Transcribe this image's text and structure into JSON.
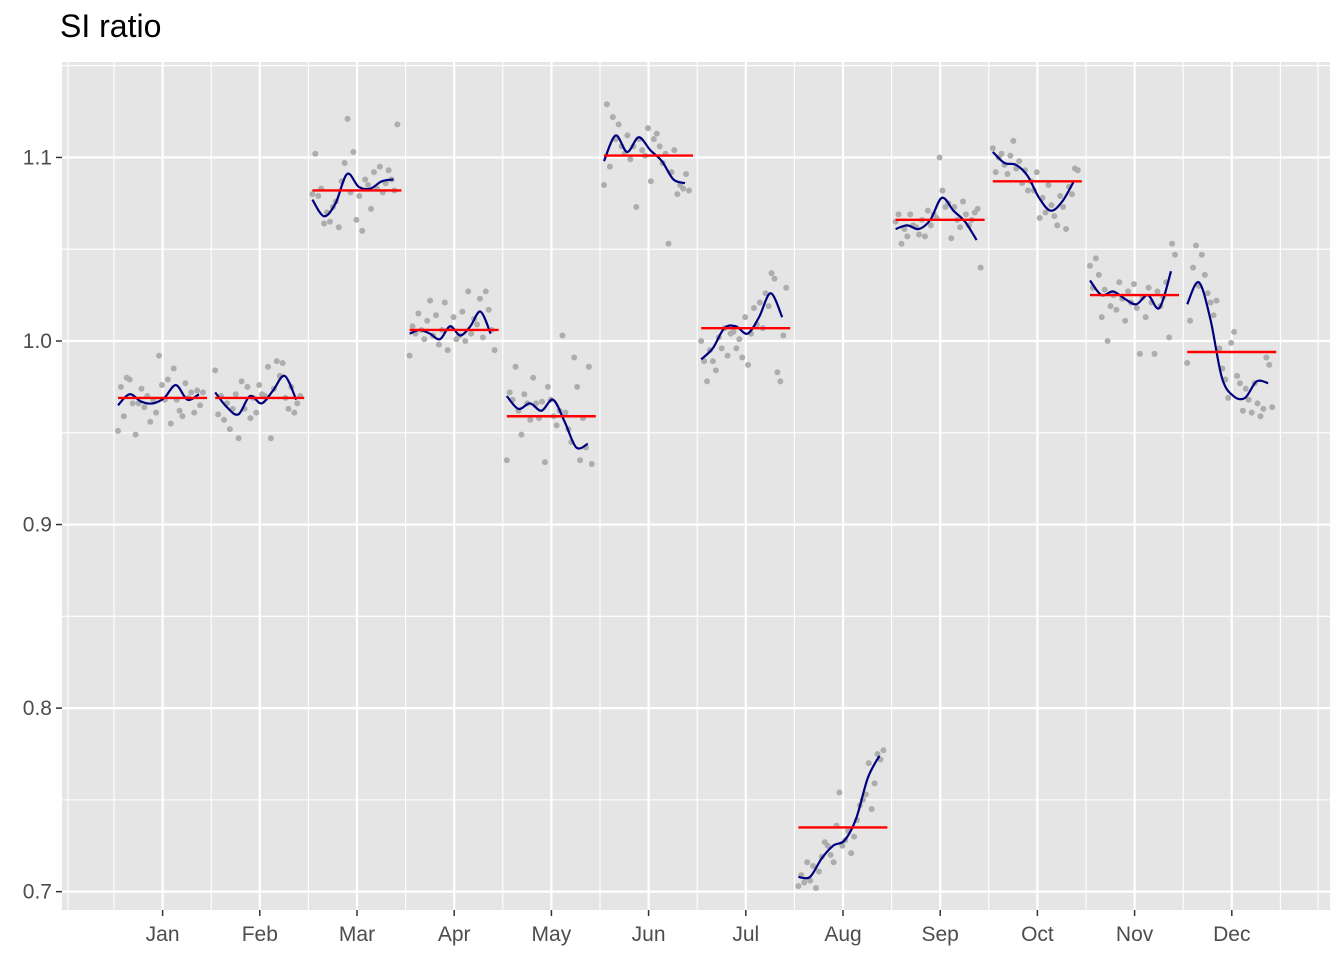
{
  "chart_data": {
    "type": "scatter",
    "title": "SI ratio",
    "xlabel": "",
    "ylabel": "",
    "ylim": [
      0.69,
      1.152
    ],
    "y_ticks": [
      "0.7",
      "0.8",
      "0.9",
      "1.0",
      "1.1"
    ],
    "grid": true,
    "legend": "none",
    "colors": {
      "panel_background": "#e5e5e5",
      "grid": "#ffffff",
      "points": "#adadad",
      "mean_line": "#ff0000",
      "smooth_line": "#00007f"
    },
    "categories": [
      "Jan",
      "Feb",
      "Mar",
      "Apr",
      "May",
      "Jun",
      "Jul",
      "Aug",
      "Sep",
      "Oct",
      "Nov",
      "Dec"
    ],
    "month_means": [
      0.969,
      0.969,
      1.082,
      1.006,
      0.959,
      1.101,
      1.007,
      0.735,
      1.066,
      1.087,
      1.025,
      0.994
    ],
    "smooth_series": [
      [
        0.965,
        0.971,
        0.967,
        0.966,
        0.969,
        0.976,
        0.968,
        0.971
      ],
      [
        0.972,
        0.964,
        0.96,
        0.97,
        0.966,
        0.973,
        0.981,
        0.968
      ],
      [
        1.077,
        1.068,
        1.075,
        1.091,
        1.084,
        1.083,
        1.087,
        1.088
      ],
      [
        1.004,
        1.006,
        1.004,
        1.001,
        1.008,
        1.003,
        1.008,
        1.016,
        1.004
      ],
      [
        0.97,
        0.963,
        0.966,
        0.962,
        0.968,
        0.956,
        0.942,
        0.944
      ],
      [
        1.098,
        1.112,
        1.103,
        1.111,
        1.104,
        1.098,
        1.088,
        1.086
      ],
      [
        0.99,
        0.996,
        1.007,
        1.008,
        1.004,
        1.013,
        1.026,
        1.013
      ],
      [
        0.708,
        0.708,
        0.718,
        0.725,
        0.728,
        0.74,
        0.762,
        0.774
      ],
      [
        1.061,
        1.063,
        1.061,
        1.066,
        1.078,
        1.071,
        1.065,
        1.055
      ],
      [
        1.103,
        1.097,
        1.096,
        1.09,
        1.078,
        1.071,
        1.076,
        1.087
      ],
      [
        1.033,
        1.025,
        1.027,
        1.023,
        1.02,
        1.025,
        1.018,
        1.038
      ],
      [
        1.02,
        1.032,
        1.012,
        0.98,
        0.97,
        0.969,
        0.978,
        0.977
      ]
    ],
    "points": [
      [
        0.951,
        0.975,
        0.959,
        0.98,
        0.979,
        0.966,
        0.949,
        0.966,
        0.974,
        0.964,
        0.97,
        0.956,
        0.968,
        0.961,
        0.992,
        0.976,
        0.968,
        0.979,
        0.955,
        0.985,
        0.968,
        0.962,
        0.959,
        0.977,
        0.969,
        0.972,
        0.961,
        0.973,
        0.965,
        0.972
      ],
      [
        0.984,
        0.96,
        0.97,
        0.957,
        0.966,
        0.952,
        0.963,
        0.971,
        0.947,
        0.978,
        0.963,
        0.975,
        0.958,
        0.969,
        0.961,
        0.976,
        0.971,
        0.97,
        0.986,
        0.947,
        0.974,
        0.989,
        0.981,
        0.988,
        0.969,
        0.963,
        0.975,
        0.961,
        0.966,
        0.97
      ],
      [
        1.08,
        1.102,
        1.079,
        1.083,
        1.064,
        1.07,
        1.065,
        1.073,
        1.076,
        1.062,
        1.087,
        1.097,
        1.121,
        1.081,
        1.103,
        1.066,
        1.079,
        1.06,
        1.088,
        1.085,
        1.072,
        1.092,
        1.083,
        1.095,
        1.081,
        1.086,
        1.093,
        1.088,
        1.082,
        1.118
      ],
      [
        0.992,
        1.008,
        1.004,
        1.015,
        1.006,
        1.001,
        1.011,
        1.022,
        1.003,
        1.014,
        0.998,
        1.006,
        1.021,
        0.995,
        1.007,
        1.013,
        1.001,
        1.003,
        1.016,
        1.0,
        1.027,
        1.004,
        1.012,
        1.009,
        1.023,
        1.002,
        1.027,
        1.017,
        1.006,
        0.995
      ],
      [
        0.935,
        0.972,
        0.968,
        0.986,
        0.962,
        0.949,
        0.971,
        0.966,
        0.957,
        0.98,
        0.966,
        0.958,
        0.967,
        0.934,
        0.975,
        0.968,
        0.959,
        0.954,
        0.962,
        1.003,
        0.961,
        0.952,
        0.945,
        0.991,
        0.975,
        0.935,
        0.958,
        0.942,
        0.986,
        0.933
      ],
      [
        1.085,
        1.129,
        1.095,
        1.122,
        1.11,
        1.118,
        1.106,
        1.102,
        1.112,
        1.099,
        1.106,
        1.073,
        1.11,
        1.104,
        1.101,
        1.116,
        1.087,
        1.11,
        1.113,
        1.106,
        1.097,
        1.102,
        1.053,
        1.092,
        1.104,
        1.08,
        1.085,
        1.083,
        1.091,
        1.082
      ],
      [
        1.0,
        0.989,
        0.978,
        0.995,
        0.989,
        0.984,
        1.002,
        0.996,
        1.007,
        0.992,
        1.004,
        1.005,
        0.996,
        1.001,
        0.991,
        1.013,
        0.987,
        1.004,
        1.018,
        1.009,
        1.021,
        1.007,
        1.026,
        1.019,
        1.037,
        1.034,
        0.983,
        0.978,
        1.003,
        1.029
      ],
      [
        0.703,
        0.709,
        0.705,
        0.716,
        0.706,
        0.714,
        0.702,
        0.711,
        0.719,
        0.727,
        0.725,
        0.72,
        0.716,
        0.736,
        0.754,
        0.725,
        0.728,
        0.733,
        0.721,
        0.73,
        0.739,
        0.747,
        0.75,
        0.753,
        0.77,
        0.745,
        0.759,
        0.775,
        0.772,
        0.777
      ],
      [
        1.065,
        1.069,
        1.053,
        1.061,
        1.057,
        1.069,
        1.063,
        1.062,
        1.058,
        1.066,
        1.057,
        1.071,
        1.063,
        1.069,
        1.067,
        1.1,
        1.082,
        1.073,
        1.075,
        1.056,
        1.073,
        1.066,
        1.062,
        1.076,
        1.069,
        1.063,
        1.066,
        1.07,
        1.072,
        1.04
      ],
      [
        1.105,
        1.092,
        1.1,
        1.102,
        1.096,
        1.091,
        1.101,
        1.109,
        1.094,
        1.098,
        1.086,
        1.093,
        1.082,
        1.087,
        1.082,
        1.092,
        1.067,
        1.078,
        1.07,
        1.085,
        1.074,
        1.068,
        1.063,
        1.079,
        1.073,
        1.061,
        1.084,
        1.08,
        1.094,
        1.093
      ],
      [
        1.041,
        1.029,
        1.045,
        1.036,
        1.013,
        1.028,
        1.0,
        1.019,
        1.025,
        1.017,
        1.032,
        1.023,
        1.011,
        1.027,
        1.021,
        1.031,
        1.018,
        0.993,
        1.024,
        1.013,
        1.029,
        1.021,
        0.993,
        1.027,
        1.019,
        1.024,
        1.032,
        1.002,
        1.053,
        1.047
      ],
      [
        0.988,
        1.011,
        1.04,
        1.052,
        1.03,
        1.047,
        1.036,
        1.026,
        1.021,
        1.014,
        1.022,
        0.996,
        0.985,
        0.979,
        0.969,
        0.999,
        1.005,
        0.981,
        0.977,
        0.962,
        0.974,
        0.968,
        0.961,
        0.977,
        0.966,
        0.959,
        0.963,
        0.991,
        0.987,
        0.964
      ]
    ]
  }
}
